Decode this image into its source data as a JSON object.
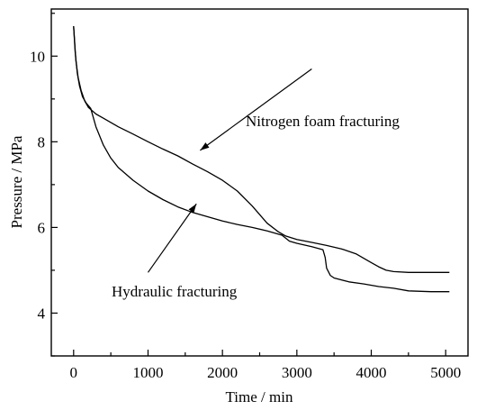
{
  "chart_data": {
    "type": "line",
    "xlabel": "Time / min",
    "ylabel": "Pressure / MPa",
    "xlim": [
      -300,
      5300
    ],
    "ylim": [
      3,
      11.1
    ],
    "x_ticks": [
      0,
      1000,
      2000,
      3000,
      4000,
      5000
    ],
    "y_ticks": [
      4,
      6,
      8,
      10
    ],
    "grid": false,
    "colors": {
      "line": "#000000"
    },
    "annotations": [
      {
        "text": "Nitrogen foam fracturing",
        "series": "nitrogen",
        "arrow_from": [
          3200,
          9.7
        ],
        "arrow_to": [
          1700,
          7.8
        ]
      },
      {
        "text": "Hydraulic fracturing",
        "series": "hydraulic",
        "arrow_from": [
          1000,
          4.95
        ],
        "arrow_to": [
          1650,
          6.55
        ]
      }
    ],
    "series": [
      {
        "id": "nitrogen",
        "x": [
          0,
          30,
          60,
          100,
          150,
          200,
          300,
          400,
          600,
          800,
          1000,
          1200,
          1400,
          1600,
          1800,
          2000,
          2200,
          2400,
          2600,
          2750,
          2850,
          3000,
          3200,
          3400,
          3600,
          3800,
          4000,
          4100,
          4200,
          4300,
          4500,
          5000,
          5050
        ],
        "y": [
          10.7,
          9.9,
          9.5,
          9.2,
          8.95,
          8.8,
          8.65,
          8.55,
          8.35,
          8.18,
          8.0,
          7.83,
          7.67,
          7.48,
          7.3,
          7.1,
          6.85,
          6.5,
          6.1,
          5.9,
          5.8,
          5.72,
          5.65,
          5.58,
          5.5,
          5.38,
          5.18,
          5.08,
          5.0,
          4.97,
          4.95,
          4.95,
          4.95
        ]
      },
      {
        "id": "hydraulic",
        "x": [
          0,
          20,
          50,
          80,
          120,
          170,
          230,
          300,
          400,
          500,
          600,
          800,
          1000,
          1200,
          1400,
          1600,
          1800,
          2000,
          2200,
          2400,
          2600,
          2800,
          2900,
          3000,
          3200,
          3350,
          3380,
          3400,
          3450,
          3500,
          3700,
          3900,
          4100,
          4300,
          4500,
          4800,
          5050
        ],
        "y": [
          10.7,
          10.1,
          9.6,
          9.3,
          9.05,
          8.9,
          8.78,
          8.35,
          7.92,
          7.62,
          7.4,
          7.1,
          6.85,
          6.65,
          6.48,
          6.35,
          6.25,
          6.15,
          6.07,
          6.0,
          5.92,
          5.82,
          5.68,
          5.63,
          5.55,
          5.48,
          5.3,
          5.05,
          4.88,
          4.82,
          4.73,
          4.68,
          4.62,
          4.58,
          4.52,
          4.5,
          4.5
        ]
      }
    ]
  }
}
